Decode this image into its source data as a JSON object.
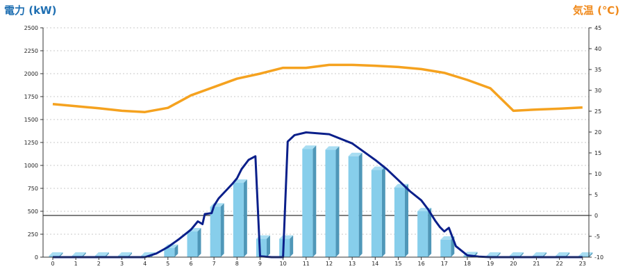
{
  "chart_data": {
    "type": "bar",
    "left_axis_title": "電力 (kW)",
    "right_axis_title": "気温 (℃)",
    "categories": [
      "0",
      "1",
      "2",
      "3",
      "4",
      "5",
      "6",
      "7",
      "8",
      "9",
      "10",
      "11",
      "12",
      "13",
      "14",
      "15",
      "16",
      "17",
      "18",
      "19",
      "20",
      "21",
      "22",
      "23"
    ],
    "left_ylim": [
      0,
      2500
    ],
    "left_ticks": [
      "0",
      "250",
      "500",
      "750",
      "1000",
      "1250",
      "1500",
      "1750",
      "2000",
      "2250",
      "2500"
    ],
    "right_ylim": [
      -10,
      45
    ],
    "right_ticks": [
      "-10",
      "-5",
      "0",
      "5",
      "10",
      "15",
      "20",
      "25",
      "30",
      "35",
      "40",
      "45"
    ],
    "grid": true,
    "reference_line_temperature": 0,
    "series": [
      {
        "kind": "bar",
        "axis": "left",
        "values": [
          15,
          15,
          15,
          15,
          15,
          100,
          280,
          550,
          810,
          200,
          200,
          1180,
          1170,
          1100,
          950,
          760,
          500,
          190,
          20,
          15,
          15,
          15,
          15,
          15
        ]
      },
      {
        "kind": "line",
        "axis": "left",
        "x": [
          0,
          1,
          2,
          3,
          4,
          4.5,
          5,
          5.5,
          6,
          6.3,
          6.5,
          6.6,
          6.9,
          7,
          7.2,
          7.5,
          7.8,
          8,
          8.2,
          8.5,
          8.8,
          9,
          9.5,
          10,
          10.2,
          10.5,
          11,
          12,
          13,
          13.5,
          14,
          14.5,
          15,
          15.5,
          16,
          16.3,
          16.6,
          16.8,
          17,
          17.2,
          17.5,
          18,
          18.5,
          19,
          20,
          21,
          22,
          23
        ],
        "y": [
          0,
          0,
          0,
          0,
          0,
          40,
          110,
          200,
          300,
          390,
          360,
          470,
          480,
          560,
          640,
          720,
          800,
          860,
          960,
          1060,
          1100,
          10,
          0,
          0,
          1260,
          1330,
          1360,
          1340,
          1240,
          1150,
          1060,
          960,
          840,
          720,
          620,
          520,
          400,
          330,
          280,
          320,
          120,
          20,
          5,
          0,
          0,
          0,
          0,
          0
        ]
      },
      {
        "kind": "line",
        "axis": "right",
        "values": [
          26.7,
          26.2,
          25.7,
          25.1,
          24.8,
          25.8,
          28.8,
          30.8,
          32.8,
          34.0,
          35.4,
          35.4,
          36.1,
          36.1,
          35.9,
          35.6,
          35.1,
          34.2,
          32.5,
          30.5,
          25.1,
          25.4,
          25.6,
          25.9
        ]
      }
    ]
  },
  "colors": {
    "bar_face": "#87ceeb",
    "bar_side": "#4f97b8",
    "bar_top": "#a8ddf2",
    "power_line": "#0a1f8a",
    "temperature_line": "#f5a21f",
    "left_title": "#1f6fb2",
    "right_title": "#f08a1c"
  }
}
